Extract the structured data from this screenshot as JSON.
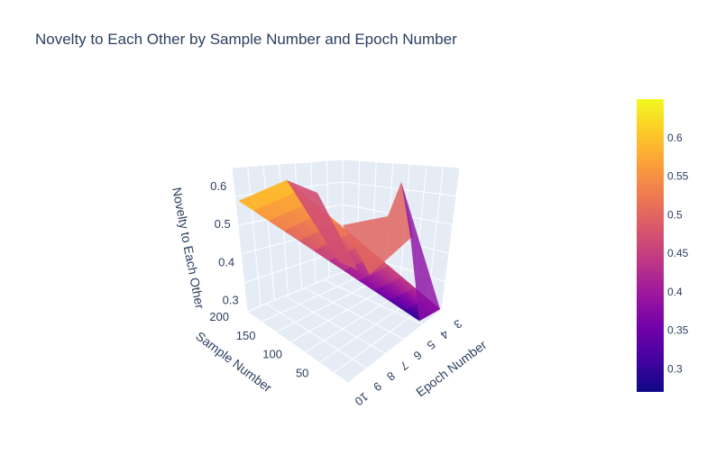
{
  "chart_data": {
    "type": "surface",
    "title": "Novelty to Each Other by Sample Number and Epoch Number",
    "xlabel": "Epoch Number",
    "ylabel": "Sample Number",
    "zlabel": "Novelty to Each Other",
    "x_ticks": [
      "3",
      "4",
      "5",
      "6",
      "7",
      "8",
      "9",
      "10"
    ],
    "y_ticks": [
      "50",
      "100",
      "150",
      "200"
    ],
    "z_ticks": [
      "0.3",
      "0.4",
      "0.5",
      "0.6"
    ],
    "colorbar_ticks": [
      "0.3",
      "0.35",
      "0.4",
      "0.45",
      "0.5",
      "0.55",
      "0.6"
    ],
    "colorscale": [
      "#0d0887",
      "#46039f",
      "#7201a8",
      "#9c179e",
      "#bd3786",
      "#d8576b",
      "#ed7953",
      "#fb9f3a",
      "#fdca26",
      "#f0f921"
    ],
    "zrange": [
      0.27,
      0.65
    ],
    "x": [
      3,
      10
    ],
    "y": [
      10,
      200
    ],
    "z": [
      [
        0.28,
        0.4
      ],
      [
        0.6,
        0.6
      ]
    ],
    "grid": true
  }
}
